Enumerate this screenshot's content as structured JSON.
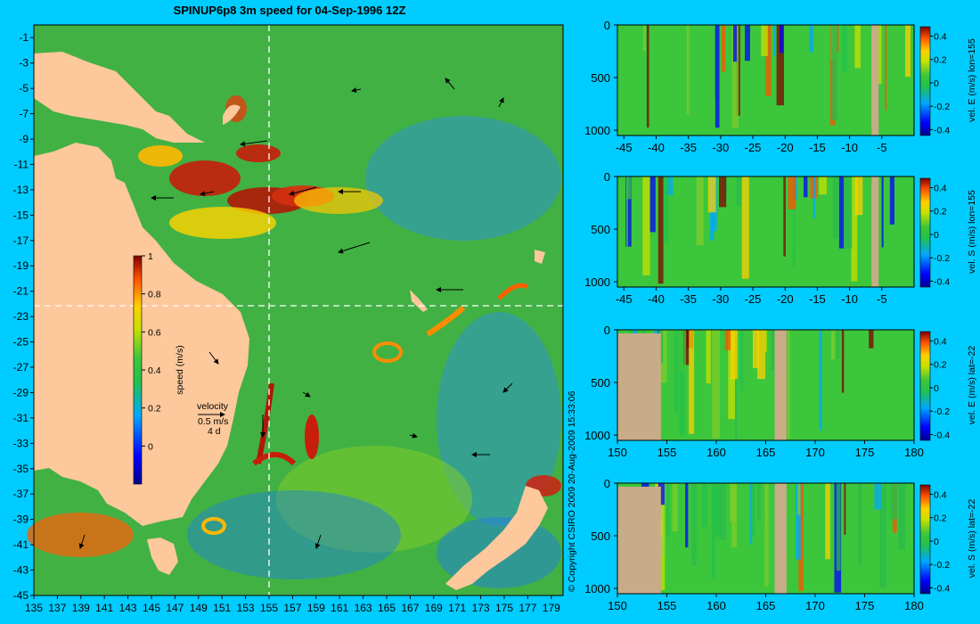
{
  "title": "SPINUP6p8 3m speed for 04-Sep-1996 12Z",
  "copyright": "© Copyright CSIRO 2009   20-Aug-2009 15:33:06",
  "map": {
    "xticks": [
      "135",
      "137",
      "139",
      "141",
      "143",
      "145",
      "147",
      "149",
      "151",
      "153",
      "155",
      "157",
      "159",
      "161",
      "163",
      "165",
      "167",
      "169",
      "171",
      "173",
      "175",
      "177",
      "179"
    ],
    "yticks": [
      "-1",
      "-3",
      "-5",
      "-7",
      "-9",
      "-11",
      "-13",
      "-15",
      "-17",
      "-19",
      "-21",
      "-23",
      "-25",
      "-27",
      "-29",
      "-31",
      "-33",
      "-35",
      "-37",
      "-39",
      "-41",
      "-43",
      "-45"
    ],
    "xlim": [
      135,
      180
    ],
    "ylim": [
      -45,
      0
    ],
    "crosshair": {
      "lon": 155,
      "lat": -22
    },
    "colorbar": {
      "label": "speed (m/s)",
      "ticks": [
        "1",
        "0.8",
        "0.6",
        "0.4",
        "0.2",
        "0"
      ],
      "range": [
        -0.2,
        1
      ]
    },
    "velocity_key": {
      "title": "velocity",
      "speed": "0.5 m/s",
      "duration": "4 d"
    },
    "colors": {
      "land": "#fdc89b",
      "ocean_low": "#1e7fff",
      "ocean_mid": "#2ab94a",
      "ocean_high": "#c81e0a"
    }
  },
  "sections": [
    {
      "id": "E-lon155",
      "cbar_label": "vel. E (m/s) lon=155",
      "xticks": [
        "-45",
        "-40",
        "-35",
        "-30",
        "-25",
        "-20",
        "-15",
        "-10",
        "-5"
      ],
      "xlim": [
        -46,
        0
      ]
    },
    {
      "id": "S-lon155",
      "cbar_label": "vel. S (m/s) lon=155",
      "xticks": [
        "-45",
        "-40",
        "-35",
        "-30",
        "-25",
        "-20",
        "-15",
        "-10",
        "-5"
      ],
      "xlim": [
        -46,
        0
      ]
    },
    {
      "id": "E-lat22",
      "cbar_label": "vel. E (m/s) lat=-22",
      "xticks": [
        "150",
        "155",
        "160",
        "165",
        "170",
        "175",
        "180"
      ],
      "xlim": [
        150,
        180
      ]
    },
    {
      "id": "S-lat22",
      "cbar_label": "vel. S (m/s) lat=-22",
      "xticks": [
        "150",
        "155",
        "160",
        "165",
        "170",
        "175",
        "180"
      ],
      "xlim": [
        150,
        180
      ]
    }
  ],
  "section_common": {
    "yticks": [
      "0",
      "500",
      "1000"
    ],
    "ylim": [
      0,
      1050
    ],
    "cbar_ticks": [
      "0.4",
      "0.2",
      "0",
      "-0.2",
      "-0.4"
    ],
    "cbar_range": [
      -0.45,
      0.48
    ]
  }
}
